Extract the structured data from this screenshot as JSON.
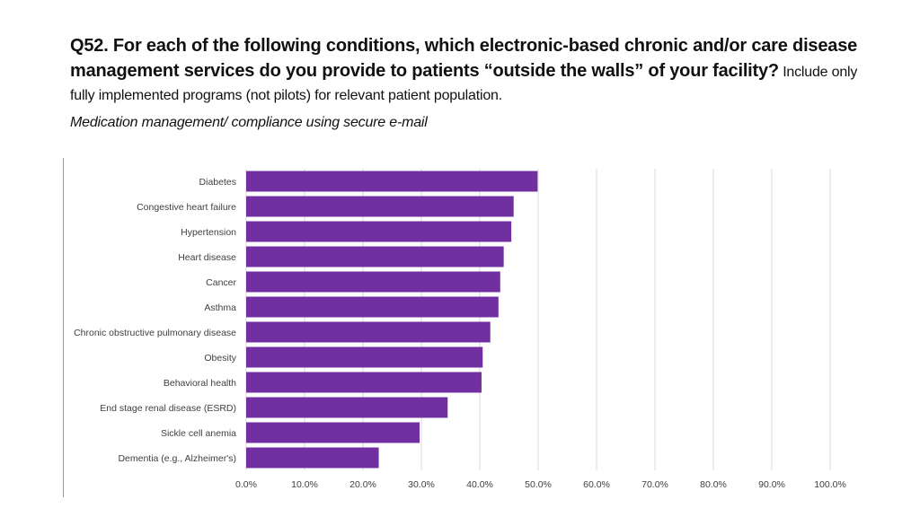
{
  "question": {
    "number_and_text": "Q52. For each of the following conditions, which electronic-based chronic and/or care disease management services do you provide to patients “outside the walls” of your facility?",
    "note": "Include only fully implemented programs (not pilots) for relevant patient population."
  },
  "subtitle": "Medication management/ compliance using secure e-mail",
  "chart_data": {
    "type": "bar",
    "orientation": "horizontal",
    "title": "Medication management/ compliance using secure e-mail",
    "categories": [
      "Diabetes",
      "Congestive heart failure",
      "Hypertension",
      "Heart disease",
      "Cancer",
      "Asthma",
      "Chronic obstructive pulmonary disease",
      "Obesity",
      "Behavioral health",
      "End stage renal disease (ESRD)",
      "Sickle cell anemia",
      "Dementia (e.g., Alzheimer's)"
    ],
    "values": [
      49.9,
      45.8,
      45.4,
      44.1,
      43.5,
      43.2,
      41.8,
      40.5,
      40.3,
      34.5,
      29.7,
      22.7
    ],
    "xlim": [
      0,
      100
    ],
    "x_ticks": [
      "0.0%",
      "10.0%",
      "20.0%",
      "30.0%",
      "40.0%",
      "50.0%",
      "60.0%",
      "70.0%",
      "80.0%",
      "90.0%",
      "100.0%"
    ],
    "xlabel": "",
    "ylabel": "",
    "grid": true,
    "bar_color": "#7030a0"
  }
}
